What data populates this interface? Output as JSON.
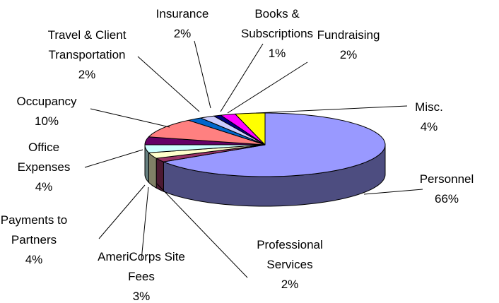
{
  "chart_data": {
    "type": "pie3d",
    "categories": [
      "Personnel",
      "Professional Services",
      "AmeriCorps Site Fees",
      "Payments to Partners",
      "Office Expenses",
      "Occupancy",
      "Travel & Client Transportation",
      "Insurance",
      "Books & Subscriptions",
      "Fundraising",
      "Misc."
    ],
    "values": [
      66,
      2,
      3,
      4,
      4,
      10,
      2,
      2,
      1,
      2,
      4
    ],
    "value_labels": [
      "66%",
      "2%",
      "3%",
      "4%",
      "4%",
      "10%",
      "2%",
      "2%",
      "1%",
      "2%",
      "4%"
    ],
    "colors": [
      "#9999ff",
      "#993366",
      "#ffffcc",
      "#ccffff",
      "#660066",
      "#ff8080",
      "#0066cc",
      "#ccccff",
      "#000080",
      "#ff00ff",
      "#ffff00"
    ]
  }
}
